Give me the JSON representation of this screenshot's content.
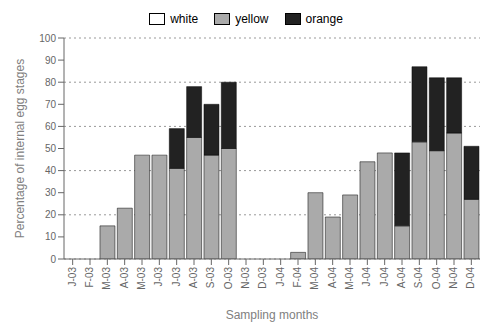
{
  "chart_data": {
    "type": "bar",
    "xlabel": "Sampling months",
    "ylabel": "Percentage of internal egg stages",
    "categories": [
      "J-03",
      "F-03",
      "M-03",
      "A-03",
      "M-03",
      "J-03",
      "J-03",
      "A-03",
      "S-03",
      "O-03",
      "N-03",
      "D-03",
      "J-04",
      "F-04",
      "M-04",
      "A-04",
      "M-04",
      "J-04",
      "J-04",
      "A-04",
      "S-04",
      "O-04",
      "N-04",
      "D-04"
    ],
    "series": [
      {
        "name": "white",
        "color": "#ffffff",
        "values": [
          0,
          0,
          0,
          0,
          0,
          0,
          0,
          0,
          0,
          0,
          0,
          0,
          0,
          0,
          0,
          0,
          0,
          0,
          0,
          0,
          0,
          0,
          0,
          0
        ]
      },
      {
        "name": "yellow",
        "color": "#aaaaaa",
        "values": [
          0,
          0,
          15,
          23,
          47,
          47,
          41,
          55,
          47,
          50,
          0,
          0,
          0,
          3,
          30,
          19,
          29,
          44,
          48,
          15,
          53,
          49,
          57,
          27
        ]
      },
      {
        "name": "orange",
        "color": "#222222",
        "values": [
          0,
          0,
          0,
          0,
          0,
          0,
          18,
          23,
          23,
          30,
          0,
          0,
          0,
          0,
          0,
          0,
          0,
          0,
          0,
          33,
          34,
          33,
          25,
          24
        ]
      }
    ],
    "ylim": [
      0,
      100
    ],
    "yticks": [
      0,
      10,
      20,
      30,
      40,
      50,
      60,
      70,
      80,
      90,
      100
    ],
    "stacked": true,
    "grid": true,
    "legend": "top"
  }
}
